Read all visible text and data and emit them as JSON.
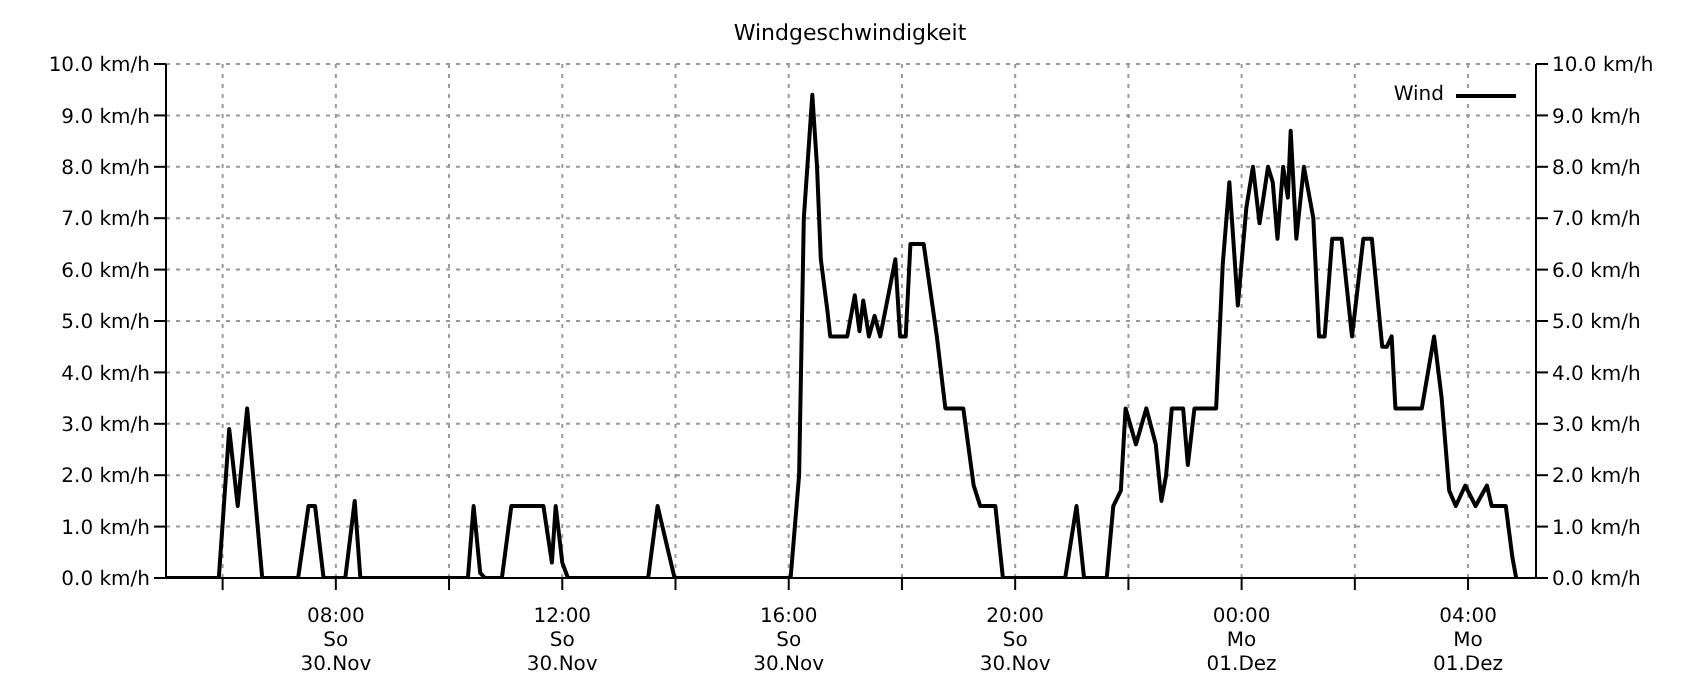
{
  "chart_data": {
    "type": "line",
    "title": "Windgeschwindigkeit",
    "x": [
      "--11-30T05:00",
      "--11-30T05:56",
      "--11-30T06:07",
      "--11-30T06:16",
      "--11-30T06:26",
      "--11-30T06:42",
      "--11-30T07:20",
      "--11-30T07:31",
      "--11-30T07:38",
      "--11-30T07:47",
      "--11-30T08:10",
      "--11-30T08:20",
      "--11-30T08:26",
      "--11-30T10:20",
      "--11-30T10:26",
      "--11-30T10:33",
      "--11-30T10:38",
      "--11-30T10:56",
      "--11-30T11:06",
      "--11-30T11:40",
      "--11-30T11:49",
      "--11-30T11:53",
      "--11-30T12:00",
      "--11-30T12:06",
      "--11-30T13:31",
      "--11-30T13:41",
      "--11-30T13:59",
      "--11-30T16:02",
      "--11-30T16:11",
      "--11-30T16:16",
      "--11-30T16:25",
      "--11-30T16:30",
      "--11-30T16:34",
      "--11-30T16:41",
      "--11-30T16:44",
      "--11-30T17:02",
      "--11-30T17:10",
      "--11-30T17:15",
      "--11-30T17:19",
      "--11-30T17:25",
      "--11-30T17:31",
      "--11-30T17:37",
      "--11-30T17:53",
      "--11-30T17:58",
      "--11-30T18:04",
      "--11-30T18:09",
      "--11-30T18:23",
      "--11-30T18:30",
      "--11-30T18:37",
      "--11-30T18:46",
      "--11-30T19:05",
      "--11-30T19:16",
      "--11-30T19:23",
      "--11-30T19:39",
      "--11-30T19:47",
      "--11-30T20:53",
      "--11-30T21:05",
      "--11-30T21:13",
      "--11-30T21:37",
      "--11-30T21:44",
      "--11-30T21:52",
      "--11-30T21:57",
      "--11-30T22:08",
      "--11-30T22:19",
      "--11-30T22:29",
      "--11-30T22:35",
      "--11-30T22:40",
      "--11-30T22:46",
      "--11-30T22:58",
      "--11-30T23:03",
      "--11-30T23:10",
      "--11-30T23:33",
      "--11-30T23:40",
      "--11-30T23:47",
      "--11-30T23:56",
      "--12-01T00:05",
      "--12-01T00:12",
      "--12-01T00:19",
      "--12-01T00:28",
      "--12-01T00:33",
      "--12-01T00:38",
      "--12-01T00:44",
      "--12-01T00:49",
      "--12-01T00:52",
      "--12-01T00:58",
      "--12-01T01:06",
      "--12-01T01:16",
      "--12-01T01:22",
      "--12-01T01:28",
      "--12-01T01:36",
      "--12-01T01:46",
      "--12-01T01:57",
      "--12-01T02:09",
      "--12-01T02:18",
      "--12-01T02:29",
      "--12-01T02:34",
      "--12-01T02:39",
      "--12-01T02:43",
      "--12-01T03:11",
      "--12-01T03:24",
      "--12-01T03:32",
      "--12-01T03:40",
      "--12-01T03:47",
      "--12-01T03:57",
      "--12-01T04:08",
      "--12-01T04:20",
      "--12-01T04:25",
      "--12-01T04:40",
      "--12-01T04:47",
      "--12-01T04:51"
    ],
    "series": [
      {
        "name": "Wind",
        "color": "#000000",
        "values": [
          0,
          0,
          2.9,
          1.4,
          3.3,
          0,
          0,
          1.4,
          1.4,
          0,
          0,
          1.5,
          0,
          0,
          1.4,
          0.1,
          0,
          0,
          1.4,
          1.4,
          0.3,
          1.4,
          0.3,
          0,
          0,
          1.4,
          0,
          0,
          2.0,
          7.0,
          9.4,
          8.0,
          6.2,
          5.2,
          4.7,
          4.7,
          5.5,
          4.8,
          5.4,
          4.7,
          5.1,
          4.7,
          6.2,
          4.7,
          4.7,
          6.5,
          6.5,
          5.6,
          4.7,
          3.3,
          3.3,
          1.8,
          1.4,
          1.4,
          0,
          0,
          1.4,
          0,
          0,
          1.4,
          1.7,
          3.3,
          2.6,
          3.3,
          2.6,
          1.5,
          2.0,
          3.3,
          3.3,
          2.2,
          3.3,
          3.3,
          6.1,
          7.7,
          5.3,
          7.2,
          8.0,
          6.9,
          8.0,
          7.7,
          6.6,
          8.0,
          7.4,
          8.7,
          6.6,
          8.0,
          7.0,
          4.7,
          4.7,
          6.6,
          6.6,
          4.7,
          6.6,
          6.6,
          4.5,
          4.5,
          4.7,
          3.3,
          3.3,
          4.7,
          3.5,
          1.7,
          1.4,
          1.8,
          1.4,
          1.8,
          1.4,
          1.4,
          0.4,
          0
        ]
      }
    ],
    "xlim": [
      "--11-30T05:00",
      "--12-01T05:12"
    ],
    "xticks": [
      {
        "value": "--11-30T06:00",
        "label": null
      },
      {
        "value": "--11-30T08:00",
        "label": "08:00\nSo\n30.Nov"
      },
      {
        "value": "--11-30T10:00",
        "label": null
      },
      {
        "value": "--11-30T12:00",
        "label": "12:00\nSo\n30.Nov"
      },
      {
        "value": "--11-30T14:00",
        "label": null
      },
      {
        "value": "--11-30T16:00",
        "label": "16:00\nSo\n30.Nov"
      },
      {
        "value": "--11-30T18:00",
        "label": null
      },
      {
        "value": "--11-30T20:00",
        "label": "20:00\nSo\n30.Nov"
      },
      {
        "value": "--11-30T22:00",
        "label": null
      },
      {
        "value": "--12-01T00:00",
        "label": "00:00\nMo\n01.Dez"
      },
      {
        "value": "--12-01T02:00",
        "label": null
      },
      {
        "value": "--12-01T04:00",
        "label": "04:00\nMo\n01.Dez"
      }
    ],
    "ylim": [
      0,
      10
    ],
    "yticks": [
      {
        "value": 0,
        "label": "0.0 km/h"
      },
      {
        "value": 1,
        "label": "1.0 km/h"
      },
      {
        "value": 2,
        "label": "2.0 km/h"
      },
      {
        "value": 3,
        "label": "3.0 km/h"
      },
      {
        "value": 4,
        "label": "4.0 km/h"
      },
      {
        "value": 5,
        "label": "5.0 km/h"
      },
      {
        "value": 6,
        "label": "6.0 km/h"
      },
      {
        "value": 7,
        "label": "7.0 km/h"
      },
      {
        "value": 8,
        "label": "8.0 km/h"
      },
      {
        "value": 9,
        "label": "9.0 km/h"
      },
      {
        "value": 10,
        "label": "10.0 km/h"
      }
    ],
    "y2lim": [
      0,
      10
    ],
    "y2ticks": [
      {
        "value": 0,
        "label": "0.0 km/h"
      },
      {
        "value": 1,
        "label": "1.0 km/h"
      },
      {
        "value": 2,
        "label": "2.0 km/h"
      },
      {
        "value": 3,
        "label": "3.0 km/h"
      },
      {
        "value": 4,
        "label": "4.0 km/h"
      },
      {
        "value": 5,
        "label": "5.0 km/h"
      },
      {
        "value": 6,
        "label": "6.0 km/h"
      },
      {
        "value": 7,
        "label": "7.0 km/h"
      },
      {
        "value": 8,
        "label": "8.0 km/h"
      },
      {
        "value": 9,
        "label": "9.0 km/h"
      },
      {
        "value": 10,
        "label": "10.0 km/h"
      }
    ],
    "grid": true,
    "legend": "top right",
    "marker": "none",
    "line_style": "solid"
  }
}
